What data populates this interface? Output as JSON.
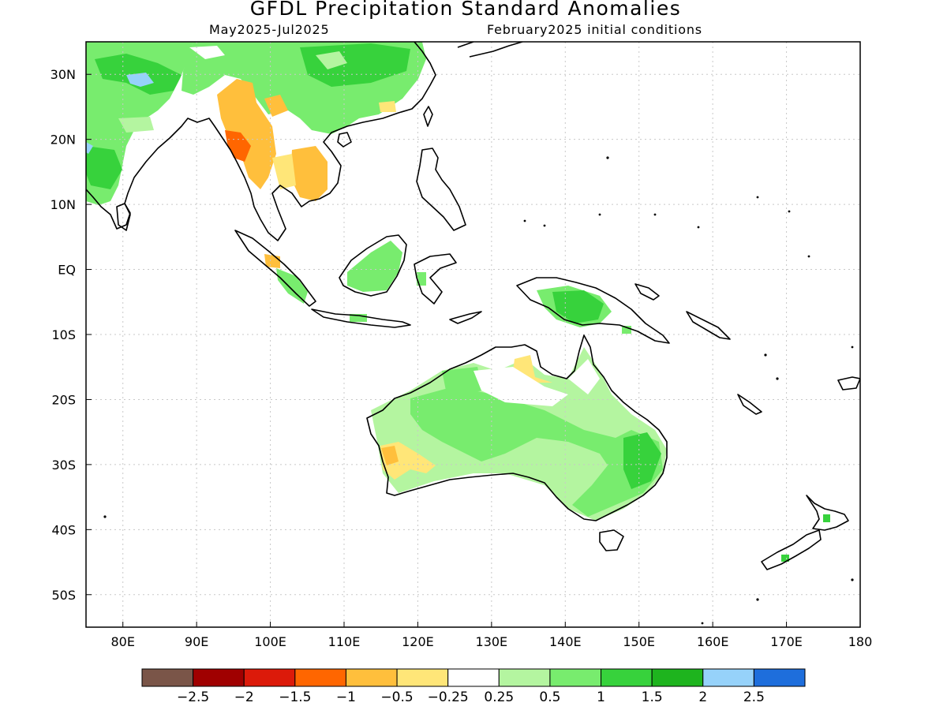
{
  "title": "GFDL Precipitation Standard Anomalies",
  "subtitle_left": "May2025-Jul2025",
  "subtitle_right": "February2025 initial conditions",
  "lat_labels": [
    "30N",
    "20N",
    "10N",
    "EQ",
    "10S",
    "20S",
    "30S",
    "40S",
    "50S"
  ],
  "lat_values": [
    30,
    20,
    10,
    0,
    -10,
    -20,
    -30,
    -40,
    -50
  ],
  "lon_labels": [
    "80E",
    "90E",
    "100E",
    "110E",
    "120E",
    "130E",
    "140E",
    "150E",
    "160E",
    "170E",
    "180"
  ],
  "lon_values": [
    80,
    90,
    100,
    110,
    120,
    130,
    140,
    150,
    160,
    170,
    180
  ],
  "extent": {
    "lon": [
      75,
      180
    ],
    "lat": [
      -55,
      35
    ]
  },
  "colorbar": {
    "colors": [
      "#7a5548",
      "#a00000",
      "#dc1a0a",
      "#ff6600",
      "#ffbf3c",
      "#ffe678",
      "#ffffff",
      "#b4f5a0",
      "#78ec6e",
      "#37d23c",
      "#1eb41e",
      "#96d2fa",
      "#1e6edc"
    ],
    "labels": [
      "-2.5",
      "-2",
      "-1.5",
      "-1",
      "-0.5",
      "-0.25",
      "0.25",
      "0.5",
      "1",
      "1.5",
      "2",
      "2.5"
    ]
  },
  "anomaly_colors": {
    "dry_strong": "#ff6600",
    "dry": "#ffbf3c",
    "dry_weak": "#ffe678",
    "wet_weak": "#b4f5a0",
    "wet": "#78ec6e",
    "wet_strong": "#37d23c",
    "wet_vstrong": "#96d2fa"
  }
}
